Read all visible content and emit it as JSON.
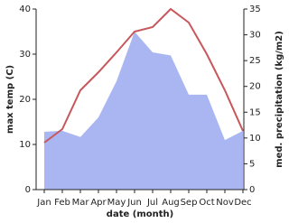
{
  "chart_data": {
    "type": "line-area",
    "x_label": "date (month)",
    "y_label": "max temp (C)",
    "y2_label": "med. precipitation (kg/m2)",
    "categories": [
      "Jan",
      "Feb",
      "Mar",
      "Apr",
      "May",
      "Jun",
      "Jul",
      "Aug",
      "Sep",
      "Oct",
      "Nov",
      "Dec"
    ],
    "series": [
      {
        "type": "area",
        "axis": "y2",
        "color": "#aab6f2",
        "values": [
          11.2,
          11.4,
          10.2,
          14,
          21,
          30.6,
          26.6,
          26,
          18.4,
          18.4,
          9.6,
          11.4
        ]
      },
      {
        "type": "line",
        "color": "#c8575c",
        "values": [
          10.4,
          13.4,
          22,
          26,
          30.4,
          35,
          36,
          40,
          37,
          30,
          22,
          13
        ]
      }
    ],
    "ylim": [
      0,
      40
    ],
    "yticks": [
      0,
      10,
      20,
      30,
      40
    ],
    "y2lim": [
      0,
      35
    ],
    "y2ticks": [
      0,
      5,
      10,
      15,
      20,
      25,
      30,
      35
    ]
  }
}
